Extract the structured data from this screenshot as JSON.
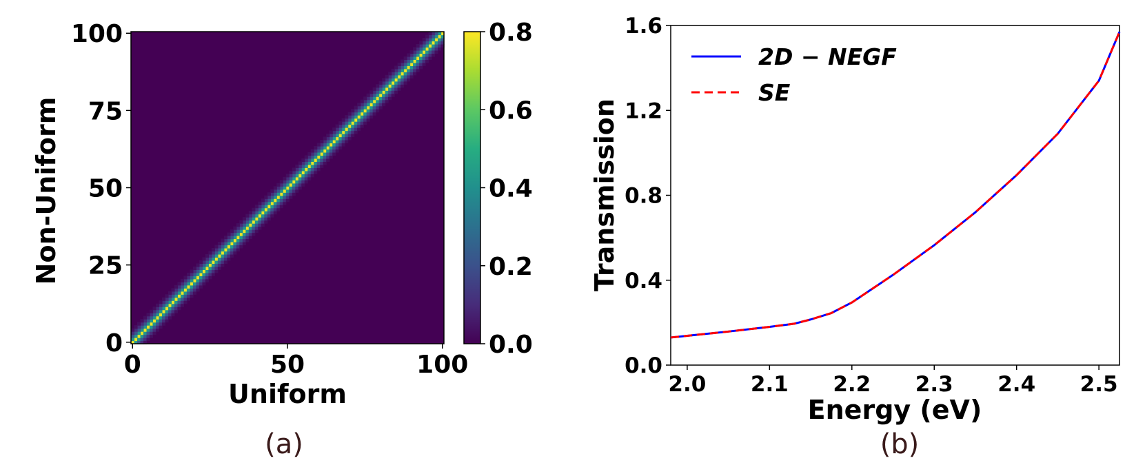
{
  "chart_data": [
    {
      "id": "a",
      "type": "heatmap",
      "caption": "(a)",
      "xlabel": "Uniform",
      "ylabel": "Non-Uniform",
      "xlim": [
        0,
        101
      ],
      "ylim": [
        0,
        101
      ],
      "grid_size": 101,
      "diagonal_band": {
        "offsets": [
          0,
          1,
          2,
          3,
          4
        ],
        "values": [
          0.78,
          0.42,
          0.22,
          0.1,
          0.03
        ]
      },
      "xticks": [
        {
          "value": 0,
          "label": "0"
        },
        {
          "value": 50,
          "label": "50"
        },
        {
          "value": 100,
          "label": "100"
        }
      ],
      "yticks": [
        {
          "value": 0,
          "label": "0"
        },
        {
          "value": 25,
          "label": "25"
        },
        {
          "value": 50,
          "label": "50"
        },
        {
          "value": 75,
          "label": "75"
        },
        {
          "value": 100,
          "label": "100"
        }
      ],
      "colorbar": {
        "range": [
          0,
          0.8
        ],
        "colormap": "viridis",
        "ticks": [
          {
            "value": 0.0,
            "label": "0.0"
          },
          {
            "value": 0.2,
            "label": "0.2"
          },
          {
            "value": 0.4,
            "label": "0.4"
          },
          {
            "value": 0.6,
            "label": "0.6"
          },
          {
            "value": 0.8,
            "label": "0.8"
          }
        ]
      }
    },
    {
      "id": "b",
      "type": "line",
      "caption": "(b)",
      "xlabel": "Energy (eV)",
      "ylabel": "Transmission",
      "xlim": [
        1.98,
        2.525
      ],
      "ylim": [
        0,
        1.6
      ],
      "xticks": [
        {
          "value": 2.0,
          "label": "2.0"
        },
        {
          "value": 2.1,
          "label": "2.1"
        },
        {
          "value": 2.2,
          "label": "2.2"
        },
        {
          "value": 2.3,
          "label": "2.3"
        },
        {
          "value": 2.4,
          "label": "2.4"
        },
        {
          "value": 2.5,
          "label": "2.5"
        }
      ],
      "yticks": [
        {
          "value": 0.0,
          "label": "0.0"
        },
        {
          "value": 0.4,
          "label": "0.4"
        },
        {
          "value": 0.8,
          "label": "0.8"
        },
        {
          "value": 1.2,
          "label": "1.2"
        },
        {
          "value": 1.6,
          "label": "1.6"
        }
      ],
      "legend": "top-left",
      "series": [
        {
          "name": "2D − NEGF",
          "color": "#0000ff",
          "style": "solid",
          "x": [
            1.98,
            2.0,
            2.05,
            2.1,
            2.13,
            2.15,
            2.175,
            2.2,
            2.25,
            2.3,
            2.35,
            2.4,
            2.45,
            2.5,
            2.525
          ],
          "y": [
            0.13,
            0.138,
            0.158,
            0.18,
            0.195,
            0.215,
            0.245,
            0.295,
            0.425,
            0.565,
            0.72,
            0.895,
            1.09,
            1.34,
            1.57
          ]
        },
        {
          "name": "SE",
          "color": "#ff0000",
          "style": "dashed",
          "x": [
            1.98,
            2.0,
            2.05,
            2.1,
            2.13,
            2.15,
            2.175,
            2.2,
            2.25,
            2.3,
            2.35,
            2.4,
            2.45,
            2.5,
            2.525
          ],
          "y": [
            0.13,
            0.138,
            0.158,
            0.18,
            0.195,
            0.215,
            0.245,
            0.295,
            0.425,
            0.565,
            0.72,
            0.895,
            1.09,
            1.34,
            1.57
          ]
        }
      ]
    }
  ]
}
